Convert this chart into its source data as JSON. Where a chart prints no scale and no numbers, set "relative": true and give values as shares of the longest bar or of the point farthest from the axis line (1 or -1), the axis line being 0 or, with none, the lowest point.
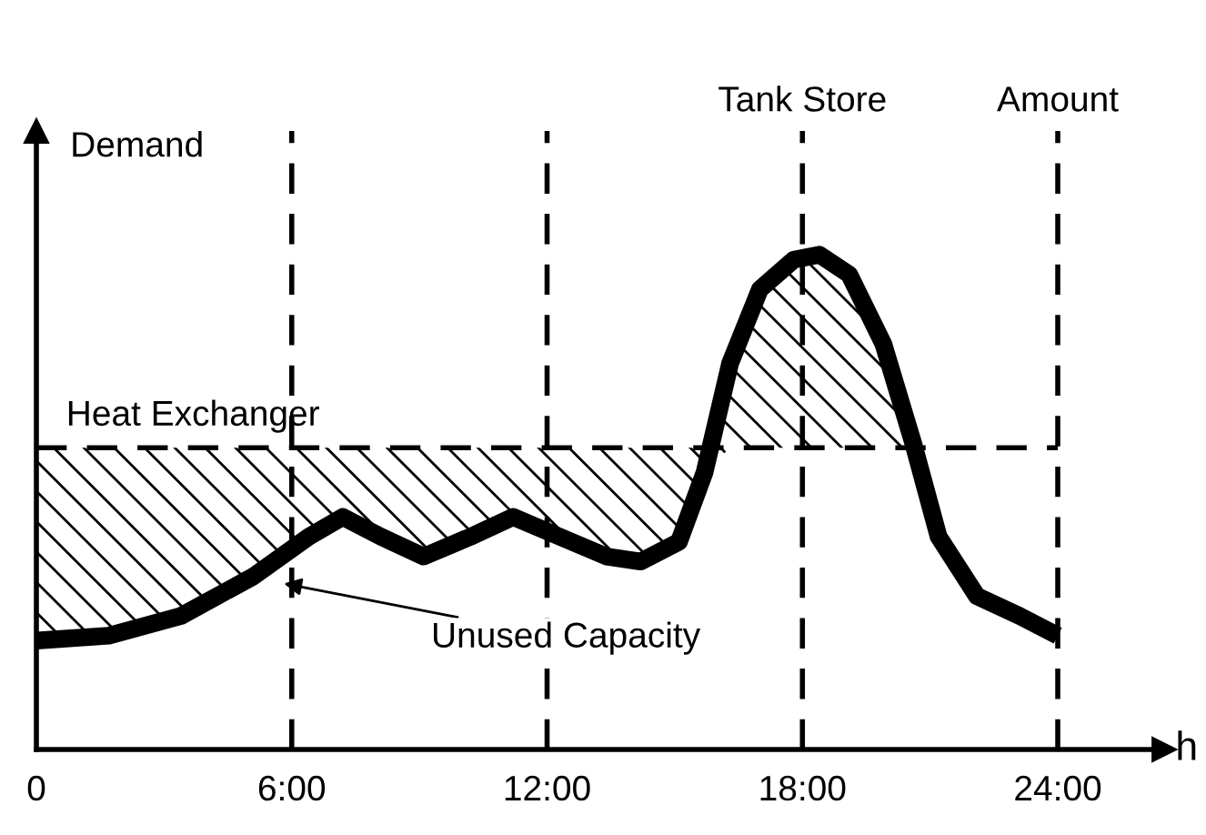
{
  "chart_data": {
    "type": "line",
    "relative": true,
    "ylabel": "Demand",
    "xlabel": "h",
    "x": [
      0,
      1.7,
      3.4,
      5.1,
      6.4,
      7.2,
      8.1,
      9.1,
      10.2,
      11.2,
      12.3,
      13.4,
      14.2,
      15.1,
      15.7,
      16.3,
      17.0,
      17.8,
      18.4,
      19.1,
      19.9,
      20.6,
      21.2,
      22.1,
      23.1,
      24
    ],
    "series": [
      {
        "color": "#000000",
        "values": [
          0.22,
          0.23,
          0.27,
          0.35,
          0.43,
          0.47,
          0.43,
          0.39,
          0.43,
          0.47,
          0.43,
          0.39,
          0.38,
          0.42,
          0.56,
          0.78,
          0.93,
          0.99,
          1,
          0.96,
          0.82,
          0.62,
          0.43,
          0.31,
          0.27,
          0.23
        ],
        "lower": [
          0.22,
          0.23,
          0.27,
          0.35,
          0.43,
          0.47,
          0.43,
          0.39,
          0.43,
          0.47,
          0.43,
          0.39,
          0.38,
          0.42,
          0.56,
          0.61,
          0.61,
          0.61,
          0.61,
          0.61,
          0.61,
          0.61,
          null,
          null,
          null,
          null
        ],
        "upper": [
          0.61,
          0.61,
          0.61,
          0.61,
          0.61,
          0.61,
          0.61,
          0.61,
          0.61,
          0.61,
          0.61,
          0.61,
          0.61,
          0.61,
          0.61,
          0.78,
          0.93,
          0.99,
          1,
          0.96,
          0.82,
          0.62,
          null,
          null,
          null,
          null
        ]
      }
    ],
    "xlim": [
      0,
      26.5
    ],
    "xticks": [
      0,
      {
        "value": 6,
        "label": "6:00"
      },
      {
        "value": 12,
        "label": "12:00"
      },
      {
        "value": 18,
        "label": "18:00"
      },
      {
        "value": 24,
        "label": "24:00"
      }
    ],
    "ref_lines": [
      {
        "axis": "x",
        "value": 6,
        "label": null,
        "line_style": "dashed",
        "color": "#000000"
      },
      {
        "axis": "x",
        "value": 12,
        "label": null,
        "line_style": "dashed",
        "color": "#000000"
      },
      {
        "axis": "x",
        "value": 18,
        "label": "Tank Store",
        "line_style": "dashed",
        "color": "#000000"
      },
      {
        "axis": "x",
        "value": 24,
        "label": "Amount",
        "line_style": "dashed",
        "color": "#000000"
      },
      {
        "axis": "y",
        "value": 0.61,
        "label": "Heat Exchanger",
        "line_style": "dashed",
        "color": "#000000"
      }
    ],
    "annotations": [
      "Unused Capacity"
    ],
    "grid": false,
    "legend": false
  }
}
